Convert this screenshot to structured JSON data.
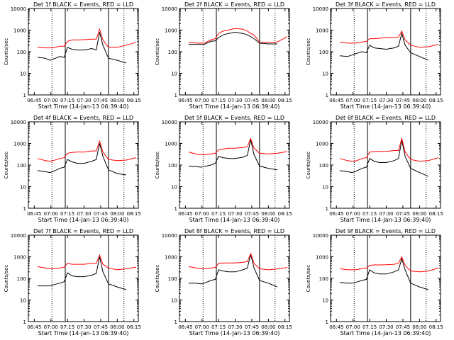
{
  "figure": {
    "ylabel": "Counts/sec",
    "xlabel": "Start Time (14-Jan-13 06:39:40)",
    "x_tick_labels": [
      "06:45",
      "07:00",
      "07:15",
      "07:30",
      "07:45",
      "08:00",
      "08:15"
    ],
    "y_tick_labels": [
      "1",
      "10",
      "100",
      "1000",
      "10000"
    ],
    "colors": {
      "events": "#000000",
      "lld": "#ff0000",
      "axes": "#000000",
      "background": "#ffffff"
    }
  },
  "chart_data": [
    {
      "type": "line",
      "title": "Det 1f BLACK = Events, RED = LLD",
      "xlabel": "Start Time (14-Jan-13 06:39:40)",
      "ylabel": "Counts/sec",
      "xlim": [
        "06:39:40",
        "08:19:00"
      ],
      "ylim": [
        1,
        10000
      ],
      "yscale": "log",
      "vlines_solid": [
        "07:13",
        "07:52"
      ],
      "vlines_dotted": [
        "07:01",
        "08:06"
      ],
      "x": [
        "06:48",
        "06:55",
        "06:59",
        "07:02",
        "07:08",
        "07:12",
        "07:15",
        "07:19",
        "07:24",
        "07:30",
        "07:37",
        "07:41",
        "07:44",
        "07:47",
        "07:52",
        "08:00",
        "08:08",
        "08:17"
      ],
      "series": [
        {
          "name": "BLACK = Events",
          "values": [
            55,
            50,
            40,
            45,
            60,
            55,
            160,
            130,
            120,
            120,
            140,
            120,
            800,
            200,
            50,
            40,
            30,
            null
          ]
        },
        {
          "name": "RED = LLD",
          "values": [
            160,
            150,
            150,
            150,
            180,
            180,
            300,
            350,
            350,
            360,
            380,
            380,
            1100,
            350,
            160,
            160,
            200,
            270
          ]
        }
      ]
    },
    {
      "type": "line",
      "title": "Det 2f BLACK = Events, RED = LLD",
      "xlabel": "Start Time (14-Jan-13 06:39:40)",
      "ylabel": "Counts/sec",
      "xlim": [
        "06:39:40",
        "08:19:00"
      ],
      "ylim": [
        1,
        10000
      ],
      "yscale": "log",
      "vlines_solid": [
        "07:13",
        "07:52"
      ],
      "vlines_dotted": [
        "07:01",
        "08:06"
      ],
      "x": [
        "06:48",
        "06:55",
        "06:59",
        "07:02",
        "07:08",
        "07:12",
        "07:15",
        "07:19",
        "07:24",
        "07:30",
        "07:37",
        "07:41",
        "07:44",
        "07:47",
        "07:52",
        "08:00",
        "08:08",
        "08:17"
      ],
      "series": [
        {
          "name": "BLACK = Events",
          "values": [
            220,
            220,
            220,
            220,
            300,
            320,
            450,
            600,
            700,
            800,
            700,
            600,
            500,
            400,
            250,
            230,
            230,
            null
          ]
        },
        {
          "name": "RED = LLD",
          "values": [
            280,
            250,
            250,
            250,
            350,
            400,
            700,
            900,
            1000,
            1200,
            1100,
            900,
            700,
            600,
            280,
            270,
            280,
            500
          ]
        }
      ]
    },
    {
      "type": "line",
      "title": "Det 3f BLACK = Events, RED = LLD",
      "xlabel": "Start Time (14-Jan-13 06:39:40)",
      "ylabel": "Counts/sec",
      "xlim": [
        "06:39:40",
        "08:19:00"
      ],
      "ylim": [
        1,
        10000
      ],
      "yscale": "log",
      "vlines_solid": [
        "07:13",
        "07:52"
      ],
      "vlines_dotted": [
        "07:01",
        "08:06"
      ],
      "x": [
        "06:48",
        "06:55",
        "06:59",
        "07:02",
        "07:08",
        "07:12",
        "07:15",
        "07:19",
        "07:24",
        "07:30",
        "07:37",
        "07:41",
        "07:44",
        "07:47",
        "07:52",
        "08:00",
        "08:08",
        "08:17"
      ],
      "series": [
        {
          "name": "BLACK = Events",
          "values": [
            65,
            60,
            70,
            80,
            100,
            90,
            200,
            150,
            140,
            130,
            150,
            180,
            700,
            200,
            90,
            60,
            40,
            null
          ]
        },
        {
          "name": "RED = LLD",
          "values": [
            280,
            250,
            250,
            250,
            280,
            300,
            400,
            400,
            420,
            450,
            450,
            480,
            900,
            350,
            200,
            160,
            170,
            220
          ]
        }
      ]
    },
    {
      "type": "line",
      "title": "Det 4f BLACK = Events, RED = LLD",
      "xlabel": "Start Time (14-Jan-13 06:39:40)",
      "ylabel": "Counts/sec",
      "xlim": [
        "06:39:40",
        "08:19:00"
      ],
      "ylim": [
        1,
        10000
      ],
      "yscale": "log",
      "vlines_solid": [
        "07:13",
        "07:52"
      ],
      "vlines_dotted": [
        "07:01",
        "08:06"
      ],
      "x": [
        "06:48",
        "06:55",
        "06:59",
        "07:02",
        "07:08",
        "07:12",
        "07:15",
        "07:19",
        "07:24",
        "07:30",
        "07:37",
        "07:41",
        "07:44",
        "07:47",
        "07:52",
        "08:00",
        "08:08",
        "08:17"
      ],
      "series": [
        {
          "name": "BLACK = Events",
          "values": [
            55,
            50,
            45,
            50,
            70,
            80,
            180,
            140,
            120,
            120,
            150,
            180,
            1000,
            250,
            60,
            40,
            35,
            null
          ]
        },
        {
          "name": "RED = LLD",
          "values": [
            200,
            160,
            150,
            160,
            200,
            220,
            350,
            380,
            400,
            400,
            450,
            450,
            1300,
            400,
            180,
            160,
            170,
            220
          ]
        }
      ]
    },
    {
      "type": "line",
      "title": "Det 5f BLACK = Events, RED = LLD",
      "xlabel": "Start Time (14-Jan-13 06:39:40)",
      "ylabel": "Counts/sec",
      "xlim": [
        "06:39:40",
        "08:19:00"
      ],
      "ylim": [
        1,
        10000
      ],
      "yscale": "log",
      "vlines_solid": [
        "07:13",
        "07:52"
      ],
      "vlines_dotted": [
        "07:01",
        "08:06"
      ],
      "x": [
        "06:48",
        "06:55",
        "06:59",
        "07:02",
        "07:08",
        "07:12",
        "07:15",
        "07:19",
        "07:24",
        "07:30",
        "07:37",
        "07:41",
        "07:44",
        "07:47",
        "07:52",
        "08:00",
        "08:08",
        "08:17"
      ],
      "series": [
        {
          "name": "BLACK = Events",
          "values": [
            90,
            85,
            80,
            85,
            100,
            120,
            250,
            220,
            200,
            200,
            230,
            280,
            1500,
            300,
            90,
            70,
            60,
            null
          ]
        },
        {
          "name": "RED = LLD",
          "values": [
            400,
            320,
            300,
            300,
            330,
            350,
            500,
            550,
            600,
            600,
            650,
            700,
            1700,
            600,
            350,
            330,
            350,
            420
          ]
        }
      ]
    },
    {
      "type": "line",
      "title": "Det 6f BLACK = Events, RED = LLD",
      "xlabel": "Start Time (14-Jan-13 06:39:40)",
      "ylabel": "Counts/sec",
      "xlim": [
        "06:39:40",
        "08:19:00"
      ],
      "ylim": [
        1,
        10000
      ],
      "yscale": "log",
      "vlines_solid": [
        "07:13",
        "07:52"
      ],
      "vlines_dotted": [
        "07:01",
        "08:06"
      ],
      "x": [
        "06:48",
        "06:55",
        "06:59",
        "07:02",
        "07:08",
        "07:12",
        "07:15",
        "07:19",
        "07:24",
        "07:30",
        "07:37",
        "07:41",
        "07:44",
        "07:47",
        "07:52",
        "08:00",
        "08:08",
        "08:17"
      ],
      "series": [
        {
          "name": "BLACK = Events",
          "values": [
            55,
            50,
            45,
            50,
            70,
            80,
            200,
            150,
            130,
            130,
            160,
            200,
            1400,
            250,
            70,
            45,
            30,
            null
          ]
        },
        {
          "name": "RED = LLD",
          "values": [
            200,
            160,
            150,
            150,
            200,
            220,
            400,
            420,
            430,
            430,
            470,
            470,
            1700,
            400,
            180,
            150,
            160,
            220
          ]
        }
      ]
    },
    {
      "type": "line",
      "title": "Det 7f BLACK = Events, RED = LLD",
      "xlabel": "Start Time (14-Jan-13 06:39:40)",
      "ylabel": "Counts/sec",
      "xlim": [
        "06:39:40",
        "08:19:00"
      ],
      "ylim": [
        1,
        10000
      ],
      "yscale": "log",
      "vlines_solid": [
        "07:13",
        "07:52"
      ],
      "vlines_dotted": [
        "07:01",
        "08:06"
      ],
      "x": [
        "06:48",
        "06:55",
        "06:59",
        "07:02",
        "07:08",
        "07:12",
        "07:15",
        "07:19",
        "07:24",
        "07:30",
        "07:37",
        "07:41",
        "07:44",
        "07:47",
        "07:52",
        "08:00",
        "08:08",
        "08:17"
      ],
      "series": [
        {
          "name": "BLACK = Events",
          "values": [
            45,
            45,
            45,
            50,
            60,
            70,
            180,
            130,
            120,
            120,
            140,
            170,
            1000,
            200,
            55,
            40,
            30,
            null
          ]
        },
        {
          "name": "RED = LLD",
          "values": [
            350,
            300,
            280,
            280,
            300,
            330,
            500,
            450,
            450,
            450,
            500,
            500,
            1200,
            450,
            300,
            250,
            280,
            330
          ]
        }
      ]
    },
    {
      "type": "line",
      "title": "Det 8f BLACK = Events, RED = LLD",
      "xlabel": "Start Time (14-Jan-13 06:39:40)",
      "ylabel": "Counts/sec",
      "xlim": [
        "06:39:40",
        "08:19:00"
      ],
      "ylim": [
        1,
        10000
      ],
      "yscale": "log",
      "vlines_solid": [
        "07:13",
        "07:52"
      ],
      "vlines_dotted": [
        "07:01",
        "08:06"
      ],
      "x": [
        "06:48",
        "06:55",
        "06:59",
        "07:02",
        "07:08",
        "07:12",
        "07:15",
        "07:19",
        "07:24",
        "07:30",
        "07:37",
        "07:41",
        "07:44",
        "07:47",
        "07:52",
        "08:00",
        "08:08",
        "08:17"
      ],
      "series": [
        {
          "name": "BLACK = Events",
          "values": [
            60,
            60,
            55,
            60,
            80,
            90,
            250,
            220,
            200,
            200,
            250,
            300,
            1300,
            300,
            80,
            60,
            40,
            null
          ]
        },
        {
          "name": "RED = LLD",
          "values": [
            350,
            300,
            280,
            280,
            300,
            320,
            500,
            520,
            520,
            520,
            550,
            600,
            1400,
            500,
            280,
            250,
            270,
            320
          ]
        }
      ]
    },
    {
      "type": "line",
      "title": "Det 9f BLACK = Events, RED = LLD",
      "xlabel": "Start Time (14-Jan-13 06:39:40)",
      "ylabel": "Counts/sec",
      "xlim": [
        "06:39:40",
        "08:19:00"
      ],
      "ylim": [
        1,
        10000
      ],
      "yscale": "log",
      "vlines_solid": [
        "07:13",
        "07:52"
      ],
      "vlines_dotted": [
        "07:01",
        "08:06"
      ],
      "x": [
        "06:48",
        "06:55",
        "06:59",
        "07:02",
        "07:08",
        "07:12",
        "07:15",
        "07:19",
        "07:24",
        "07:30",
        "07:37",
        "07:41",
        "07:44",
        "07:47",
        "07:52",
        "08:00",
        "08:08",
        "08:17"
      ],
      "series": [
        {
          "name": "BLACK = Events",
          "values": [
            65,
            60,
            60,
            65,
            80,
            90,
            250,
            180,
            160,
            160,
            200,
            250,
            800,
            250,
            60,
            40,
            30,
            null
          ]
        },
        {
          "name": "RED = LLD",
          "values": [
            280,
            250,
            250,
            250,
            280,
            300,
            400,
            420,
            420,
            430,
            450,
            500,
            1000,
            400,
            220,
            200,
            220,
            300
          ]
        }
      ]
    }
  ]
}
